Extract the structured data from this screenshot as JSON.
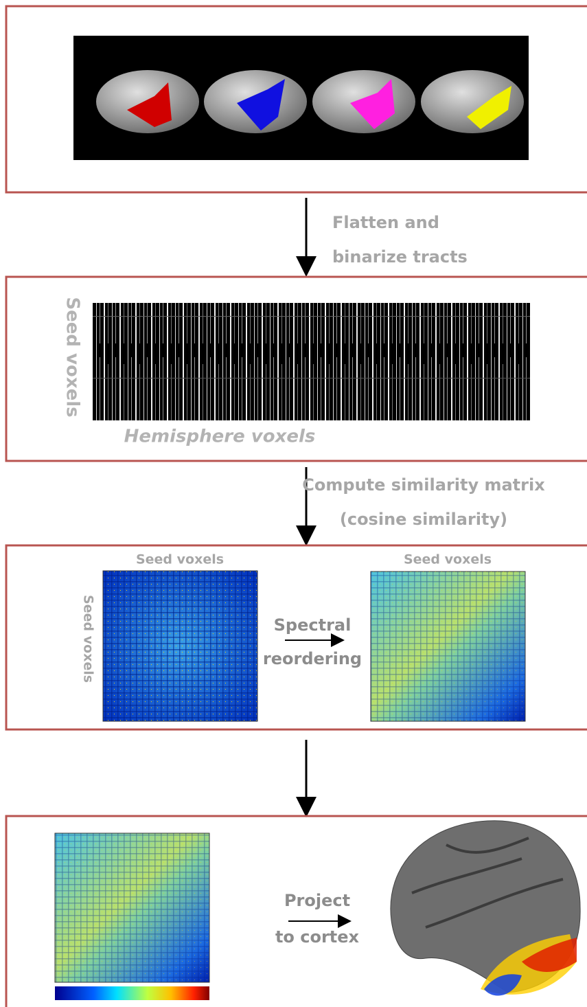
{
  "arrows": [
    {
      "lines": [
        "Flatten and",
        "binarize tracts"
      ]
    },
    {
      "lines": [
        "Compute similarity matrix",
        "(cosine similarity)"
      ]
    }
  ],
  "panel2": {
    "y_label": "Seed voxels",
    "x_label": "Hemisphere voxels"
  },
  "panel3": {
    "left_title": "Seed voxels",
    "left_y_label": "Seed voxels",
    "arrow_label": [
      "Spectral",
      "reordering"
    ],
    "right_title": "Seed voxels"
  },
  "panel4": {
    "arrow_label": [
      "Project",
      "to cortex"
    ]
  }
}
